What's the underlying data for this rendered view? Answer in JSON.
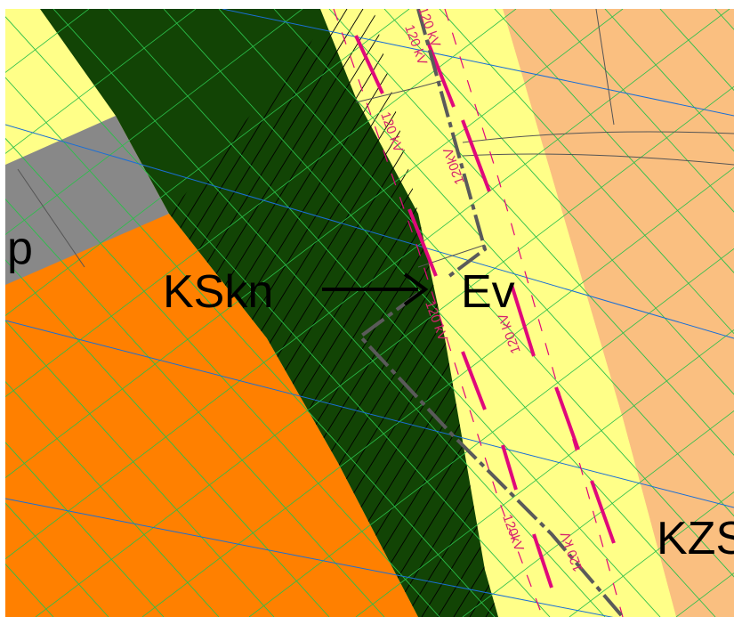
{
  "colors": {
    "background": "#ffffff",
    "pale_yellow_zone": "#ffff88",
    "orange_zone": "#ff8000",
    "peach_zone": "#fabf80",
    "dark_green_zone": "#124405",
    "gray_zone": "#888888",
    "powerline_magenta": "#e0087a",
    "road_gray": "#5a5a5a",
    "blue_line": "#1a6fd6",
    "green_line": "#2bbf4a",
    "arrow": "#000000"
  },
  "labels": {
    "zone_left_partial": "p",
    "zone_kskn": "KSkn",
    "zone_ev": "Ev",
    "zone_kzs_partial": "KZS"
  },
  "powerline_labels": [
    "120 kV",
    "120 kV",
    "120kV",
    "120 kV",
    "120 kV",
    "120kV",
    "120 kV",
    "120 kV"
  ],
  "arrow": {
    "from": "zone_kskn",
    "to": "zone_ev"
  }
}
